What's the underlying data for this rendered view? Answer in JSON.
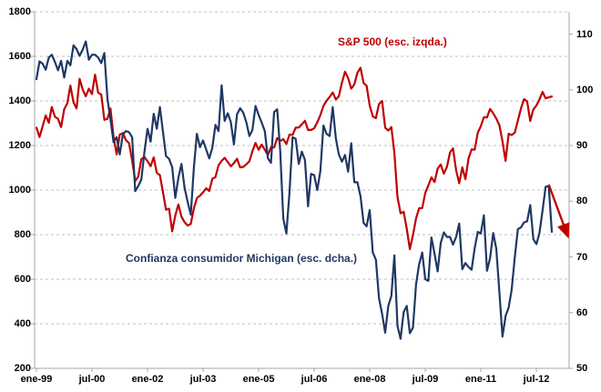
{
  "chart_data": {
    "type": "line",
    "title": "",
    "x_axis": {
      "frequency": "monthly",
      "start": "ene-99",
      "end": "dic-12",
      "tick_labels": [
        "ene-99",
        "jul-00",
        "ene-02",
        "jul-03",
        "ene-05",
        "jul-06",
        "ene-08",
        "jul-09",
        "ene-11",
        "jul-12"
      ],
      "tick_every_months": 18
    },
    "left_axis": {
      "min": 200,
      "max": 1800,
      "step": 200,
      "ticks": [
        200,
        400,
        600,
        800,
        1000,
        1200,
        1400,
        1600,
        1800
      ],
      "plot_top_value": 1800,
      "grid": true
    },
    "right_axis": {
      "min": 50,
      "max": 110,
      "step": 10,
      "ticks": [
        50,
        60,
        70,
        80,
        90,
        100,
        110
      ],
      "plot_top_value": 114,
      "grid": false
    },
    "series": [
      {
        "name": "S&P 500 (esc. izqda.)",
        "axis": "left",
        "color": "#C00000",
        "values": [
          1280,
          1238,
          1286,
          1335,
          1302,
          1373,
          1329,
          1320,
          1283,
          1363,
          1389,
          1469,
          1394,
          1366,
          1499,
          1452,
          1421,
          1455,
          1431,
          1518,
          1437,
          1429,
          1315,
          1320,
          1366,
          1240,
          1160,
          1249,
          1256,
          1224,
          1211,
          1134,
          1041,
          1060,
          1139,
          1148,
          1130,
          1107,
          1147,
          1077,
          1067,
          990,
          912,
          916,
          815,
          886,
          936,
          880,
          856,
          841,
          848,
          917,
          964,
          975,
          990,
          1008,
          996,
          1051,
          1058,
          1112,
          1131,
          1145,
          1126,
          1107,
          1121,
          1141,
          1102,
          1104,
          1115,
          1130,
          1174,
          1212,
          1181,
          1204,
          1181,
          1157,
          1192,
          1191,
          1234,
          1220,
          1229,
          1207,
          1249,
          1248,
          1280,
          1281,
          1295,
          1311,
          1270,
          1270,
          1277,
          1304,
          1336,
          1378,
          1401,
          1418,
          1438,
          1407,
          1421,
          1482,
          1531,
          1503,
          1455,
          1474,
          1527,
          1549,
          1481,
          1468,
          1379,
          1331,
          1323,
          1386,
          1400,
          1280,
          1267,
          1283,
          1166,
          969,
          896,
          903,
          826,
          735,
          798,
          873,
          919,
          919,
          987,
          1021,
          1057,
          1036,
          1096,
          1115,
          1074,
          1104,
          1169,
          1187,
          1089,
          1031,
          1102,
          1049,
          1141,
          1183,
          1181,
          1258,
          1286,
          1327,
          1326,
          1364,
          1345,
          1321,
          1292,
          1219,
          1131,
          1253,
          1247,
          1258,
          1312,
          1366,
          1408,
          1398,
          1310,
          1362,
          1379,
          1407,
          1441,
          1412,
          1416,
          1420
        ]
      },
      {
        "name": "Confianza consumidor Michigan (esc. dcha.)",
        "axis": "right",
        "color": "#1F3864",
        "values": [
          101.9,
          105.1,
          104.7,
          103.6,
          105.8,
          106.3,
          105.0,
          103.5,
          105.2,
          102.2,
          105.2,
          104.4,
          108.0,
          107.3,
          106.1,
          107.2,
          108.7,
          105.4,
          106.3,
          106.3,
          105.8,
          104.8,
          106.6,
          98.4,
          94.7,
          90.6,
          91.5,
          88.4,
          92.0,
          92.6,
          92.4,
          91.5,
          81.8,
          82.7,
          83.9,
          88.8,
          93.0,
          90.7,
          95.7,
          93.0,
          96.9,
          92.4,
          88.1,
          87.6,
          86.1,
          80.6,
          84.2,
          86.7,
          82.4,
          79.9,
          77.6,
          86.0,
          92.1,
          89.7,
          90.9,
          89.3,
          87.7,
          89.6,
          93.7,
          92.6,
          100.8,
          94.4,
          95.8,
          94.2,
          90.2,
          95.6,
          96.7,
          95.9,
          94.2,
          91.7,
          92.8,
          97.1,
          95.5,
          94.1,
          92.6,
          87.7,
          86.9,
          96.0,
          96.5,
          89.1,
          76.9,
          74.2,
          81.6,
          91.5,
          91.2,
          86.7,
          88.9,
          87.4,
          79.1,
          84.9,
          84.7,
          82.0,
          85.4,
          93.6,
          92.1,
          91.7,
          96.9,
          91.3,
          88.4,
          87.1,
          88.3,
          85.3,
          90.4,
          83.4,
          83.4,
          80.9,
          76.1,
          75.5,
          78.4,
          70.8,
          69.5,
          62.6,
          59.8,
          56.4,
          61.2,
          63.0,
          70.3,
          57.6,
          55.3,
          60.1,
          61.2,
          56.3,
          57.3,
          65.1,
          68.7,
          70.8,
          66.0,
          65.7,
          73.5,
          70.6,
          67.4,
          72.5,
          74.4,
          73.6,
          73.6,
          72.2,
          73.6,
          76.0,
          67.8,
          68.9,
          68.2,
          67.7,
          71.6,
          74.5,
          74.2,
          77.5,
          67.5,
          69.8,
          74.3,
          71.5,
          63.7,
          55.7,
          59.4,
          60.9,
          64.1,
          69.9,
          75.0,
          75.3,
          76.2,
          76.4,
          79.3,
          73.2,
          72.3,
          74.3,
          78.3,
          82.6,
          82.7,
          74.5
        ]
      }
    ],
    "annotations": [
      {
        "type": "arrow",
        "axis": "right",
        "color": "#C00000",
        "from": {
          "month_index": 166,
          "value": 83
        },
        "to": {
          "month_index": 172,
          "value": 74
        }
      }
    ],
    "legend_position": "inline-labels",
    "grid_style": "dashed-horizontal"
  },
  "labels": {
    "sp500": "S&P 500 (esc. izqda.)",
    "michigan": "Confianza consumidor Michigan (esc. dcha.)"
  },
  "colors": {
    "sp500_line": "#C00000",
    "michigan_line": "#1F3864",
    "gridline": "#BFBFBF",
    "axis_line": "#A6A6A6",
    "tick_text": "#000000",
    "background": "#FFFFFF"
  }
}
